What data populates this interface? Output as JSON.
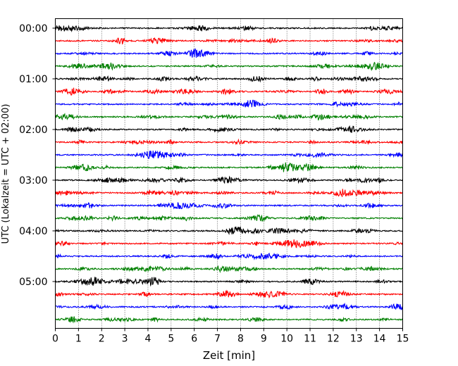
{
  "chart_data": {
    "type": "line",
    "title": "",
    "xlabel": "Zeit  [min]",
    "ylabel": "UTC (Lokalzeit = UTC + 02:00)",
    "xlim": [
      0,
      15
    ],
    "x_ticks": [
      "0",
      "1",
      "2",
      "3",
      "4",
      "5",
      "6",
      "7",
      "8",
      "9",
      "10",
      "11",
      "12",
      "13",
      "14",
      "15"
    ],
    "y_tick_labels": [
      "00:00",
      "01:00",
      "02:00",
      "03:00",
      "04:00",
      "05:00"
    ],
    "grid_x": true,
    "grid_style": "dotted",
    "trace_count": 24,
    "trace_interval_min": 15,
    "trace_colors": [
      "#000000",
      "#ff0000",
      "#0000ff",
      "#008000"
    ]
  }
}
